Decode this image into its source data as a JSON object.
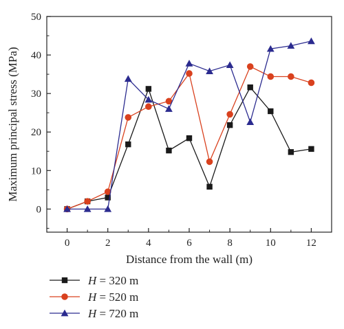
{
  "chart_data": {
    "type": "line",
    "xlabel": "Distance from the wall (m)",
    "ylabel": "Maximum principal stress (MPa)",
    "xlim": [
      -1,
      13
    ],
    "ylim": [
      -6,
      50
    ],
    "xticks": [
      0,
      2,
      4,
      6,
      8,
      10,
      12
    ],
    "yticks": [
      0,
      10,
      20,
      30,
      40,
      50
    ],
    "x": [
      0,
      1,
      2,
      3,
      4,
      5,
      6,
      7,
      8,
      9,
      10,
      11,
      12
    ],
    "grid": false,
    "legend_position": "bottom-left, below plot",
    "series": [
      {
        "name": "H = 320 m",
        "var": "H",
        "value_text": " = 320 m",
        "marker": "square",
        "color": "#1a1a1a",
        "values": [
          0,
          2,
          3,
          16.8,
          31.2,
          15.2,
          18.4,
          5.8,
          21.8,
          31.6,
          25.4,
          14.8,
          15.6
        ]
      },
      {
        "name": "H = 520 m",
        "var": "H",
        "value_text": " = 520 m",
        "marker": "circle",
        "color": "#d9411e",
        "values": [
          0,
          2,
          4.5,
          23.8,
          26.6,
          28,
          35.2,
          12.3,
          24.6,
          37,
          34.4,
          34.4,
          32.8
        ]
      },
      {
        "name": "H = 720 m",
        "var": "H",
        "value_text": " = 720 m",
        "marker": "triangle",
        "color": "#2b2b8f",
        "values": [
          0,
          0,
          0,
          33.8,
          28.4,
          26,
          37.8,
          35.8,
          37.4,
          22.6,
          41.6,
          42.4,
          43.6
        ]
      }
    ]
  }
}
